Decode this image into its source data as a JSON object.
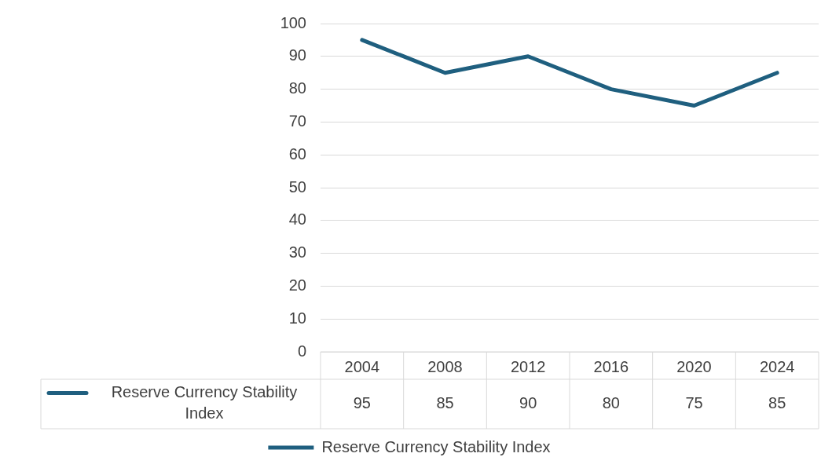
{
  "chart_data": {
    "type": "line",
    "categories": [
      "2004",
      "2008",
      "2012",
      "2016",
      "2020",
      "2024"
    ],
    "series": [
      {
        "name": "Reserve Currency Stability Index",
        "color": "#1f5f7f",
        "values": [
          95,
          85,
          90,
          80,
          75,
          85
        ]
      }
    ],
    "ylim": [
      0,
      100
    ],
    "yticks": [
      0,
      10,
      20,
      30,
      40,
      50,
      60,
      70,
      80,
      90,
      100
    ],
    "grid": "y",
    "legend": "bottom",
    "data_labels": true,
    "marker": "none",
    "line_style": "solid"
  }
}
